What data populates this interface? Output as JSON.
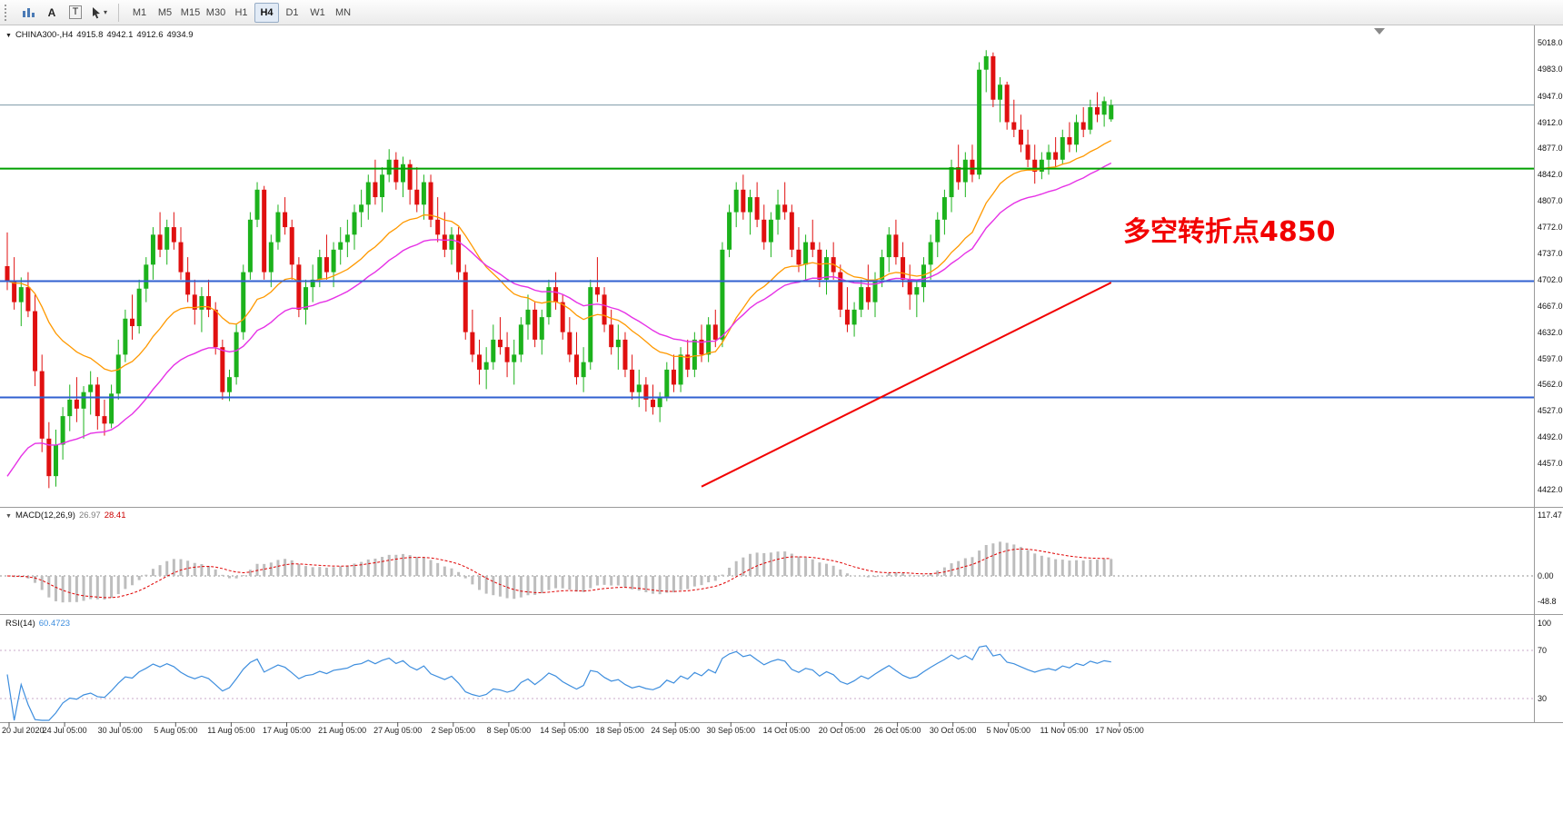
{
  "toolbar": {
    "tools": [
      {
        "name": "chart-objects-icon",
        "label": ""
      },
      {
        "name": "font-tool",
        "label": "A"
      },
      {
        "name": "text-label-tool",
        "label": "T"
      },
      {
        "name": "cursor-tool",
        "label": ""
      }
    ],
    "periods": [
      "M1",
      "M5",
      "M15",
      "M30",
      "H1",
      "H4",
      "D1",
      "W1",
      "MN"
    ],
    "active_period": "H4"
  },
  "price_chart": {
    "symbol_line": {
      "symbol": "CHINA300-,H4",
      "open": "4915.8",
      "high": "4942.1",
      "low": "4912.6",
      "close": "4934.9"
    },
    "scale_labels": [
      "5018.0",
      "4983.0",
      "4947.0",
      "4912.0",
      "4877.0",
      "4842.0",
      "4807.0",
      "4772.0",
      "4737.0",
      "4702.0",
      "4667.0",
      "4632.0",
      "4597.0",
      "4562.0",
      "4527.0",
      "4492.0",
      "4457.0",
      "4422.0"
    ],
    "current_price": {
      "label": "4934.9",
      "price": 4934.9,
      "badge_color": "#000000",
      "line_color": "#7E9AA8"
    },
    "levels": [
      {
        "label": "4850.0",
        "price": 4850,
        "color": "#00A000"
      },
      {
        "label": "4700.0",
        "price": 4700,
        "color": "#3060D0"
      },
      {
        "label": "4545.0",
        "price": 4545,
        "color": "#3060D0"
      }
    ],
    "annotation": {
      "text": "多空转折点4850",
      "color": "#F20000"
    }
  },
  "macd_panel": {
    "label": "MACD(12,26,9)",
    "value_main": "26.97",
    "value_signal": "28.41",
    "scale_labels": [
      "117.47",
      "0.00",
      "-48.8"
    ],
    "histogram_color": "#BDBDBD",
    "signal_color": "#E00000"
  },
  "rsi_panel": {
    "label": "RSI(14)",
    "value": "60.4723",
    "scale_labels": [
      "100",
      "70",
      "30"
    ],
    "levels": [
      70,
      30
    ],
    "line_color": "#3E8EDE"
  },
  "chart_data": {
    "type": "candlestick",
    "symbol": "CHINA300-",
    "timeframe": "H4",
    "title": "CHINA300-,H4",
    "ylim": [
      4422,
      5018
    ],
    "x_labels": [
      "20 Jul 2020",
      "24 Jul 05:00",
      "30 Jul 05:00",
      "5 Aug 05:00",
      "11 Aug 05:00",
      "17 Aug 05:00",
      "21 Aug 05:00",
      "27 Aug 05:00",
      "2 Sep 05:00",
      "8 Sep 05:00",
      "14 Sep 05:00",
      "18 Sep 05:00",
      "24 Sep 05:00",
      "30 Sep 05:00",
      "14 Oct 05:00",
      "20 Oct 05:00",
      "26 Oct 05:00",
      "30 Oct 05:00",
      "5 Nov 05:00",
      "11 Nov 05:00",
      "17 Nov 05:00"
    ],
    "up_color": "#1CB21C",
    "down_color": "#E01010",
    "ohlc": [
      [
        4720,
        4765,
        4688,
        4700
      ],
      [
        4700,
        4732,
        4662,
        4672
      ],
      [
        4672,
        4705,
        4640,
        4692
      ],
      [
        4692,
        4712,
        4652,
        4660
      ],
      [
        4660,
        4682,
        4560,
        4580
      ],
      [
        4580,
        4602,
        4472,
        4490
      ],
      [
        4490,
        4512,
        4424,
        4440
      ],
      [
        4440,
        4502,
        4426,
        4482
      ],
      [
        4482,
        4532,
        4462,
        4520
      ],
      [
        4520,
        4562,
        4500,
        4542
      ],
      [
        4542,
        4572,
        4512,
        4530
      ],
      [
        4530,
        4560,
        4490,
        4552
      ],
      [
        4552,
        4580,
        4522,
        4562
      ],
      [
        4562,
        4572,
        4502,
        4520
      ],
      [
        4520,
        4542,
        4494,
        4510
      ],
      [
        4510,
        4562,
        4504,
        4550
      ],
      [
        4550,
        4622,
        4542,
        4602
      ],
      [
        4602,
        4662,
        4592,
        4650
      ],
      [
        4650,
        4682,
        4622,
        4640
      ],
      [
        4640,
        4702,
        4630,
        4690
      ],
      [
        4690,
        4732,
        4672,
        4722
      ],
      [
        4722,
        4772,
        4702,
        4762
      ],
      [
        4762,
        4792,
        4732,
        4742
      ],
      [
        4742,
        4782,
        4722,
        4772
      ],
      [
        4772,
        4792,
        4742,
        4752
      ],
      [
        4752,
        4772,
        4702,
        4712
      ],
      [
        4712,
        4732,
        4672,
        4682
      ],
      [
        4682,
        4702,
        4642,
        4662
      ],
      [
        4662,
        4692,
        4632,
        4680
      ],
      [
        4680,
        4702,
        4652,
        4662
      ],
      [
        4662,
        4672,
        4602,
        4612
      ],
      [
        4612,
        4622,
        4542,
        4552
      ],
      [
        4552,
        4582,
        4540,
        4572
      ],
      [
        4572,
        4642,
        4562,
        4632
      ],
      [
        4632,
        4722,
        4622,
        4712
      ],
      [
        4712,
        4792,
        4702,
        4782
      ],
      [
        4782,
        4832,
        4772,
        4822
      ],
      [
        4822,
        4827,
        4702,
        4712
      ],
      [
        4712,
        4762,
        4692,
        4752
      ],
      [
        4752,
        4802,
        4742,
        4792
      ],
      [
        4792,
        4812,
        4762,
        4772
      ],
      [
        4772,
        4782,
        4702,
        4722
      ],
      [
        4722,
        4732,
        4652,
        4662
      ],
      [
        4662,
        4702,
        4642,
        4692
      ],
      [
        4692,
        4722,
        4672,
        4702
      ],
      [
        4702,
        4742,
        4692,
        4732
      ],
      [
        4732,
        4762,
        4702,
        4712
      ],
      [
        4712,
        4752,
        4692,
        4742
      ],
      [
        4742,
        4772,
        4722,
        4752
      ],
      [
        4752,
        4782,
        4732,
        4762
      ],
      [
        4762,
        4802,
        4742,
        4792
      ],
      [
        4792,
        4822,
        4772,
        4802
      ],
      [
        4802,
        4842,
        4782,
        4832
      ],
      [
        4832,
        4862,
        4802,
        4812
      ],
      [
        4812,
        4852,
        4792,
        4842
      ],
      [
        4842,
        4876,
        4832,
        4862
      ],
      [
        4862,
        4872,
        4822,
        4832
      ],
      [
        4832,
        4866,
        4812,
        4856
      ],
      [
        4856,
        4862,
        4802,
        4822
      ],
      [
        4822,
        4852,
        4792,
        4802
      ],
      [
        4802,
        4842,
        4782,
        4832
      ],
      [
        4832,
        4842,
        4772,
        4782
      ],
      [
        4782,
        4812,
        4752,
        4762
      ],
      [
        4762,
        4792,
        4732,
        4742
      ],
      [
        4742,
        4772,
        4722,
        4762
      ],
      [
        4762,
        4772,
        4702,
        4712
      ],
      [
        4712,
        4722,
        4622,
        4632
      ],
      [
        4632,
        4662,
        4592,
        4602
      ],
      [
        4602,
        4622,
        4562,
        4582
      ],
      [
        4582,
        4612,
        4556,
        4592
      ],
      [
        4592,
        4642,
        4582,
        4622
      ],
      [
        4622,
        4652,
        4602,
        4612
      ],
      [
        4612,
        4632,
        4572,
        4592
      ],
      [
        4592,
        4622,
        4562,
        4602
      ],
      [
        4602,
        4652,
        4592,
        4642
      ],
      [
        4642,
        4682,
        4622,
        4662
      ],
      [
        4662,
        4672,
        4612,
        4622
      ],
      [
        4622,
        4662,
        4602,
        4652
      ],
      [
        4652,
        4702,
        4642,
        4692
      ],
      [
        4692,
        4712,
        4662,
        4672
      ],
      [
        4672,
        4682,
        4622,
        4632
      ],
      [
        4632,
        4652,
        4592,
        4602
      ],
      [
        4602,
        4632,
        4562,
        4572
      ],
      [
        4572,
        4612,
        4552,
        4592
      ],
      [
        4592,
        4702,
        4582,
        4692
      ],
      [
        4692,
        4732,
        4672,
        4682
      ],
      [
        4682,
        4692,
        4632,
        4642
      ],
      [
        4642,
        4662,
        4602,
        4612
      ],
      [
        4612,
        4642,
        4582,
        4622
      ],
      [
        4622,
        4632,
        4572,
        4582
      ],
      [
        4582,
        4602,
        4542,
        4552
      ],
      [
        4552,
        4582,
        4532,
        4562
      ],
      [
        4562,
        4572,
        4526,
        4542
      ],
      [
        4542,
        4562,
        4522,
        4532
      ],
      [
        4532,
        4552,
        4512,
        4546
      ],
      [
        4546,
        4592,
        4540,
        4582
      ],
      [
        4582,
        4602,
        4552,
        4562
      ],
      [
        4562,
        4612,
        4552,
        4602
      ],
      [
        4602,
        4622,
        4572,
        4582
      ],
      [
        4582,
        4632,
        4572,
        4622
      ],
      [
        4622,
        4642,
        4592,
        4602
      ],
      [
        4602,
        4652,
        4592,
        4642
      ],
      [
        4642,
        4662,
        4612,
        4622
      ],
      [
        4622,
        4752,
        4612,
        4742
      ],
      [
        4742,
        4802,
        4732,
        4792
      ],
      [
        4792,
        4832,
        4772,
        4822
      ],
      [
        4822,
        4842,
        4782,
        4792
      ],
      [
        4792,
        4822,
        4762,
        4812
      ],
      [
        4812,
        4832,
        4772,
        4782
      ],
      [
        4782,
        4802,
        4742,
        4752
      ],
      [
        4752,
        4792,
        4732,
        4782
      ],
      [
        4782,
        4822,
        4762,
        4802
      ],
      [
        4802,
        4832,
        4782,
        4792
      ],
      [
        4792,
        4802,
        4732,
        4742
      ],
      [
        4742,
        4772,
        4712,
        4722
      ],
      [
        4722,
        4762,
        4702,
        4752
      ],
      [
        4752,
        4782,
        4732,
        4742
      ],
      [
        4742,
        4752,
        4692,
        4702
      ],
      [
        4702,
        4742,
        4682,
        4732
      ],
      [
        4732,
        4752,
        4702,
        4712
      ],
      [
        4712,
        4722,
        4652,
        4662
      ],
      [
        4662,
        4692,
        4632,
        4642
      ],
      [
        4642,
        4672,
        4626,
        4662
      ],
      [
        4662,
        4702,
        4652,
        4692
      ],
      [
        4692,
        4722,
        4662,
        4672
      ],
      [
        4672,
        4712,
        4652,
        4702
      ],
      [
        4702,
        4742,
        4692,
        4732
      ],
      [
        4732,
        4772,
        4712,
        4762
      ],
      [
        4762,
        4782,
        4722,
        4732
      ],
      [
        4732,
        4752,
        4692,
        4702
      ],
      [
        4702,
        4722,
        4662,
        4682
      ],
      [
        4682,
        4702,
        4652,
        4692
      ],
      [
        4692,
        4732,
        4672,
        4722
      ],
      [
        4722,
        4762,
        4702,
        4752
      ],
      [
        4752,
        4792,
        4732,
        4782
      ],
      [
        4782,
        4822,
        4762,
        4812
      ],
      [
        4812,
        4862,
        4792,
        4852
      ],
      [
        4852,
        4882,
        4822,
        4832
      ],
      [
        4832,
        4872,
        4812,
        4862
      ],
      [
        4862,
        4882,
        4832,
        4842
      ],
      [
        4842,
        4992,
        4836,
        4982
      ],
      [
        4982,
        5008,
        4952,
        5000
      ],
      [
        5000,
        5005,
        4932,
        4942
      ],
      [
        4942,
        4972,
        4912,
        4962
      ],
      [
        4962,
        4966,
        4902,
        4912
      ],
      [
        4912,
        4942,
        4892,
        4902
      ],
      [
        4902,
        4922,
        4872,
        4882
      ],
      [
        4882,
        4902,
        4852,
        4862
      ],
      [
        4862,
        4882,
        4830,
        4846
      ],
      [
        4846,
        4872,
        4836,
        4862
      ],
      [
        4862,
        4882,
        4842,
        4872
      ],
      [
        4872,
        4892,
        4852,
        4862
      ],
      [
        4862,
        4902,
        4856,
        4892
      ],
      [
        4892,
        4912,
        4872,
        4882
      ],
      [
        4882,
        4922,
        4872,
        4912
      ],
      [
        4912,
        4932,
        4892,
        4902
      ],
      [
        4902,
        4942,
        4896,
        4932
      ],
      [
        4932,
        4952,
        4912,
        4922
      ],
      [
        4922,
        4946,
        4906,
        4940
      ],
      [
        4915.8,
        4942.1,
        4912.6,
        4934.9
      ]
    ],
    "overlays": {
      "ma_fast": {
        "period": 21,
        "color": "#FF9900"
      },
      "ma_slow": {
        "period": 34,
        "color": "#E632E6"
      },
      "trendline": {
        "from_index": 100,
        "from_price": 4426,
        "to_index": 159,
        "to_price": 4698,
        "color": "#F20000"
      },
      "hlines": [
        4850,
        4700,
        4545
      ]
    },
    "indicators": {
      "macd": {
        "fast": 12,
        "slow": 26,
        "signal": 9,
        "last_main": 26.97,
        "last_signal": 28.41
      },
      "rsi": {
        "period": 14,
        "last": 60.4723
      }
    }
  }
}
